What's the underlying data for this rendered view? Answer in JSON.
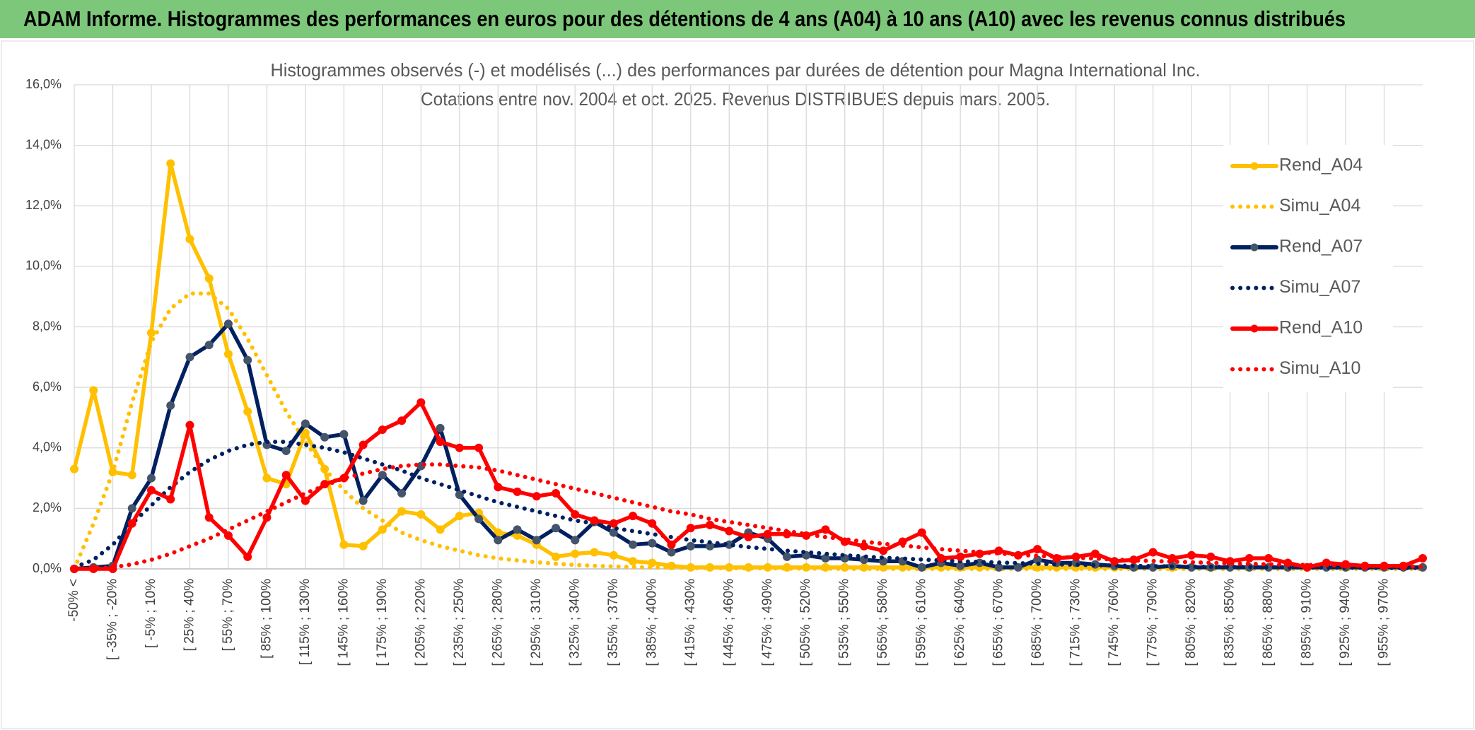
{
  "banner": "ADAM Informe. Histogrammes des performances en euros pour des détentions de 4 ans (A04) à 10 ans (A10) avec les revenus connus distribués",
  "chart_data": {
    "type": "line",
    "title": "Histogrammes observés (-) et modélisés (...) des performances par durées de détention pour Magna International Inc.",
    "subtitle": "Cotations entre nov. 2004 et oct. 2025. Revenus DISTRIBUES depuis mars. 2005.",
    "categories": [
      "-50% <",
      null,
      "[ -35% ; -20%",
      null,
      "[ -5% ; 10%",
      null,
      "[ 25% ; 40%",
      null,
      "[ 55% ; 70%",
      null,
      "[ 85% ; 100%",
      null,
      "[ 115% ; 130%",
      null,
      "[ 145% ; 160%",
      null,
      "[ 175% ; 190%",
      null,
      "[ 205% ; 220%",
      null,
      "[ 235% ; 250%",
      null,
      "[ 265% ; 280%",
      null,
      "[ 295% ; 310%",
      null,
      "[ 325% ; 340%",
      null,
      "[ 355% ; 370%",
      null,
      "[ 385% ; 400%",
      null,
      "[ 415% ; 430%",
      null,
      "[ 445% ; 460%",
      null,
      "[ 475% ; 490%",
      null,
      "[ 505% ; 520%",
      null,
      "[ 535% ; 550%",
      null,
      "[ 565% ; 580%",
      null,
      "[ 595% ; 610%",
      null,
      "[ 625% ; 640%",
      null,
      "[ 655% ; 670%",
      null,
      "[ 685% ; 700%",
      null,
      "[ 715% ; 730%",
      null,
      "[ 745% ; 760%",
      null,
      "[ 775% ; 790%",
      null,
      "[ 805% ; 820%",
      null,
      "[ 835% ; 850%",
      null,
      "[ 865% ; 880%",
      null,
      "[ 895% ; 910%",
      null,
      "[ 925% ; 940%",
      null,
      "[ 955% ; 970%",
      null,
      null
    ],
    "ylim": [
      0,
      16
    ],
    "yticks": [
      {
        "value": 0,
        "label": "0,0%"
      },
      {
        "value": 2,
        "label": "2,0%"
      },
      {
        "value": 4,
        "label": "4,0%"
      },
      {
        "value": 6,
        "label": "6,0%"
      },
      {
        "value": 8,
        "label": "8,0%"
      },
      {
        "value": 10,
        "label": "10,0%"
      },
      {
        "value": 12,
        "label": "12,0%"
      },
      {
        "value": 14,
        "label": "14,0%"
      },
      {
        "value": 16,
        "label": "16,0%"
      }
    ],
    "grid": true,
    "legend": "right",
    "series": [
      {
        "name": "Rend_A04",
        "color": "#FFC000",
        "marker_color": "#FFC000",
        "style": "solid",
        "values": [
          3.3,
          5.9,
          3.2,
          3.1,
          7.8,
          13.4,
          10.9,
          9.6,
          7.1,
          5.2,
          3.0,
          2.8,
          4.5,
          3.3,
          0.8,
          0.75,
          1.3,
          1.9,
          1.8,
          1.3,
          1.75,
          1.85,
          1.2,
          1.1,
          0.8,
          0.4,
          0.5,
          0.55,
          0.45,
          0.25,
          0.2,
          0.1,
          0.05,
          0.05,
          0.05,
          0.05,
          0.05,
          0.05,
          0.05,
          0.05,
          0.05,
          0.05,
          0.05,
          0.05,
          0.05,
          0.05,
          0.05,
          0.05,
          0.05,
          0.05,
          0.05,
          0.05,
          0.05,
          0.05,
          0.05,
          0.05,
          0.05,
          0.05,
          0.05,
          0.05,
          0.05,
          0.05,
          0.05,
          0.05,
          0.05,
          0.05,
          0.05,
          0.05,
          0.05,
          0.05,
          0.05
        ]
      },
      {
        "name": "Simu_A04",
        "color": "#FFC000",
        "style": "dotted",
        "values": [
          0,
          1.5,
          3.2,
          5.5,
          7.5,
          8.6,
          9.1,
          9.1,
          8.6,
          7.6,
          6.4,
          5.2,
          4.2,
          3.3,
          2.6,
          2.0,
          1.6,
          1.2,
          0.95,
          0.75,
          0.6,
          0.45,
          0.35,
          0.28,
          0.22,
          0.17,
          0.13,
          0.1,
          0.08,
          0.06,
          0.05,
          0.04,
          0.03,
          0.03,
          0.02,
          0.02,
          0.02,
          0.01,
          0.01,
          0.01,
          0,
          0,
          0,
          0,
          0,
          0,
          0,
          0,
          0,
          0,
          0,
          0,
          0,
          0,
          0,
          0,
          0,
          0,
          0,
          0,
          0,
          0,
          0,
          0,
          0,
          0,
          0,
          0,
          0,
          0,
          0
        ]
      },
      {
        "name": "Rend_A07",
        "color": "#002060",
        "marker_color": "#44546A",
        "style": "solid",
        "values": [
          0,
          0.05,
          0.1,
          2.0,
          3.0,
          5.4,
          7.0,
          7.4,
          8.1,
          6.9,
          4.1,
          3.9,
          4.8,
          4.35,
          4.45,
          2.25,
          3.1,
          2.5,
          3.4,
          4.65,
          2.45,
          1.65,
          0.95,
          1.3,
          0.95,
          1.35,
          0.95,
          1.55,
          1.2,
          0.8,
          0.85,
          0.55,
          0.75,
          0.75,
          0.8,
          1.2,
          1.0,
          0.4,
          0.45,
          0.35,
          0.35,
          0.3,
          0.25,
          0.25,
          0.05,
          0.2,
          0.1,
          0.2,
          0.05,
          0.05,
          0.3,
          0.2,
          0.2,
          0.15,
          0.1,
          0.05,
          0.05,
          0.1,
          0.05,
          0.05,
          0.05,
          0.05,
          0.05,
          0.05,
          0.05,
          0.05,
          0.05,
          0.05,
          0.05,
          0.05,
          0.05
        ]
      },
      {
        "name": "Simu_A07",
        "color": "#002060",
        "style": "dotted",
        "values": [
          0.05,
          0.3,
          0.8,
          1.5,
          2.1,
          2.7,
          3.2,
          3.6,
          3.9,
          4.1,
          4.2,
          4.2,
          4.1,
          4.0,
          3.85,
          3.65,
          3.45,
          3.25,
          3.0,
          2.8,
          2.6,
          2.4,
          2.2,
          2.05,
          1.9,
          1.75,
          1.6,
          1.5,
          1.35,
          1.25,
          1.15,
          1.05,
          0.95,
          0.88,
          0.8,
          0.72,
          0.66,
          0.6,
          0.55,
          0.5,
          0.45,
          0.41,
          0.37,
          0.34,
          0.31,
          0.28,
          0.25,
          0.23,
          0.21,
          0.19,
          0.17,
          0.15,
          0.14,
          0.12,
          0.11,
          0.1,
          0.09,
          0.08,
          0.07,
          0.07,
          0.06,
          0.06,
          0.05,
          0.05,
          0.04,
          0.04,
          0.04,
          0.03,
          0.03,
          0.03,
          0.03
        ]
      },
      {
        "name": "Rend_A10",
        "color": "#FF0000",
        "marker_color": "#FF0000",
        "style": "solid",
        "values": [
          0,
          0,
          0,
          1.5,
          2.6,
          2.3,
          4.75,
          1.7,
          1.1,
          0.4,
          1.7,
          3.1,
          2.25,
          2.8,
          3.0,
          4.1,
          4.6,
          4.9,
          5.5,
          4.2,
          4.0,
          4.0,
          2.7,
          2.55,
          2.4,
          2.5,
          1.8,
          1.6,
          1.5,
          1.75,
          1.5,
          0.8,
          1.35,
          1.45,
          1.25,
          1.05,
          1.15,
          1.15,
          1.1,
          1.3,
          0.9,
          0.75,
          0.6,
          0.9,
          1.2,
          0.35,
          0.4,
          0.5,
          0.6,
          0.45,
          0.65,
          0.35,
          0.4,
          0.5,
          0.25,
          0.3,
          0.55,
          0.35,
          0.45,
          0.4,
          0.25,
          0.35,
          0.35,
          0.2,
          0.05,
          0.2,
          0.15,
          0.1,
          0.1,
          0.1,
          0.35
        ]
      },
      {
        "name": "Simu_A10",
        "color": "#FF0000",
        "style": "dotted",
        "values": [
          0,
          0.02,
          0.05,
          0.15,
          0.3,
          0.5,
          0.75,
          1.0,
          1.3,
          1.6,
          1.9,
          2.2,
          2.5,
          2.75,
          3.0,
          3.15,
          3.3,
          3.4,
          3.45,
          3.45,
          3.4,
          3.35,
          3.25,
          3.1,
          2.95,
          2.8,
          2.65,
          2.5,
          2.35,
          2.2,
          2.05,
          1.9,
          1.8,
          1.65,
          1.55,
          1.45,
          1.35,
          1.25,
          1.15,
          1.05,
          0.98,
          0.9,
          0.83,
          0.77,
          0.71,
          0.65,
          0.6,
          0.55,
          0.51,
          0.47,
          0.43,
          0.4,
          0.37,
          0.34,
          0.31,
          0.28,
          0.26,
          0.24,
          0.22,
          0.2,
          0.18,
          0.17,
          0.15,
          0.14,
          0.13,
          0.12,
          0.11,
          0.1,
          0.09,
          0.08,
          0.07
        ]
      }
    ]
  }
}
